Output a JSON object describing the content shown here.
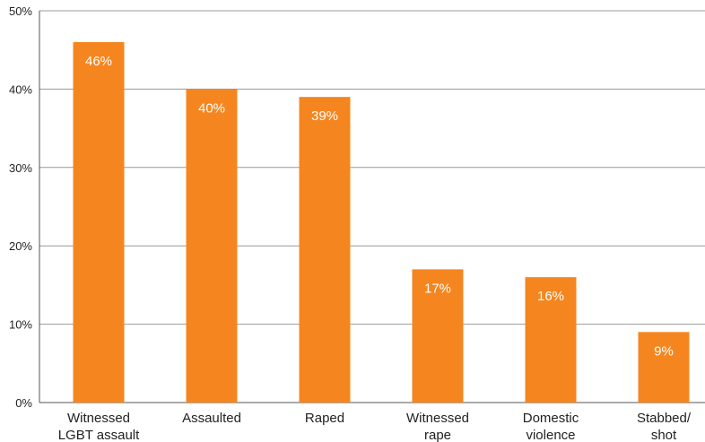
{
  "chart_data": {
    "type": "bar",
    "categories": [
      [
        "Witnessed",
        "LGBT assault"
      ],
      [
        "Assaulted"
      ],
      [
        "Raped"
      ],
      [
        "Witnessed",
        "rape"
      ],
      [
        "Domestic",
        "violence"
      ],
      [
        "Stabbed/",
        "shot"
      ]
    ],
    "values": [
      46,
      40,
      39,
      17,
      16,
      9
    ],
    "data_labels": [
      "46%",
      "40%",
      "39%",
      "17%",
      "16%",
      "9%"
    ],
    "ylim": [
      0,
      50
    ],
    "yticks": [
      0,
      10,
      20,
      30,
      40,
      50
    ],
    "ytick_labels": [
      "0%",
      "10%",
      "20%",
      "30%",
      "40%",
      "50%"
    ],
    "grid": true,
    "bar_color": "#f5861f",
    "grid_color": "#999999",
    "axis_color": "#555555"
  }
}
